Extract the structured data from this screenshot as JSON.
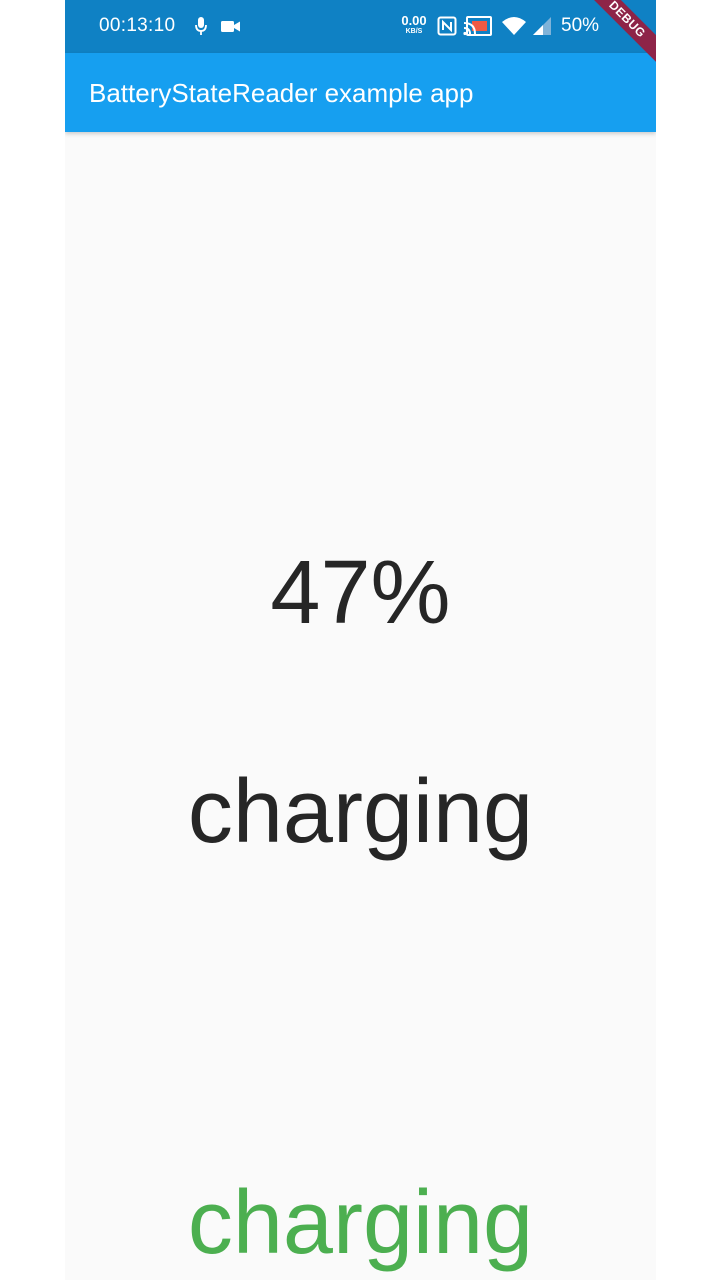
{
  "status_bar": {
    "time": "00:13:10",
    "net_speed_value": "0.00",
    "net_speed_unit": "KB/S",
    "battery_percent": "50%",
    "icons": [
      "mic-icon",
      "video-camera-icon",
      "nfc-icon",
      "cast-icon",
      "wifi-icon",
      "signal-icon"
    ],
    "background_color": "#0f81c4"
  },
  "app_bar": {
    "title": "BatteryStateReader example app",
    "background_color": "#169ff0"
  },
  "debug_banner": {
    "label": "DEBUG",
    "color": "#8e2448"
  },
  "main": {
    "battery_level": "47%",
    "battery_state": "charging",
    "battery_state_stream": "charging",
    "stream_text_color": "#4caf50"
  }
}
